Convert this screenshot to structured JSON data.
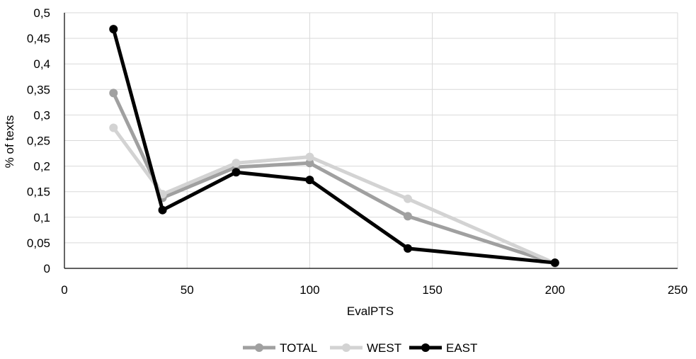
{
  "chart_data": {
    "type": "line",
    "title": "",
    "xlabel": "EvalPTS",
    "ylabel": "% of texts",
    "xlim": [
      0,
      250
    ],
    "ylim": [
      0,
      0.5
    ],
    "x_ticks": [
      0,
      50,
      100,
      150,
      200,
      250
    ],
    "x_tick_labels": [
      "0",
      "50",
      "100",
      "150",
      "200",
      "250"
    ],
    "y_ticks": [
      0,
      0.05,
      0.1,
      0.15,
      0.2,
      0.25,
      0.3,
      0.35,
      0.4,
      0.45,
      0.5
    ],
    "y_tick_labels": [
      "0",
      "0,05",
      "0,1",
      "0,15",
      "0,2",
      "0,25",
      "0,3",
      "0,35",
      "0,4",
      "0,45",
      "0,5"
    ],
    "grid": true,
    "legend_position": "bottom",
    "x": [
      20,
      40,
      70,
      100,
      140,
      200
    ],
    "series": [
      {
        "name": "TOTAL",
        "color": "#a0a0a0",
        "values": [
          0.343,
          0.138,
          0.198,
          0.206,
          0.102,
          0.01
        ]
      },
      {
        "name": "WEST",
        "color": "#d3d3d3",
        "values": [
          0.275,
          0.145,
          0.206,
          0.218,
          0.136,
          0.01
        ]
      },
      {
        "name": "EAST",
        "color": "#000000",
        "values": [
          0.468,
          0.114,
          0.188,
          0.173,
          0.039,
          0.011
        ]
      }
    ]
  }
}
